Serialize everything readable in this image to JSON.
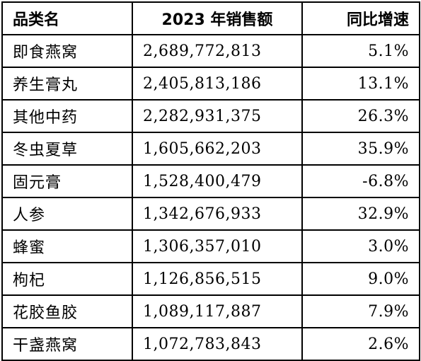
{
  "table": {
    "headers": {
      "category": "品类名",
      "sales": "2023 年销售额",
      "growth": "同比增速"
    },
    "rows": [
      {
        "category": "即食燕窝",
        "sales": "2,689,772,813",
        "growth": "5.1%"
      },
      {
        "category": "养生膏丸",
        "sales": "2,405,813,186",
        "growth": "13.1%"
      },
      {
        "category": "其他中药",
        "sales": "2,282,931,375",
        "growth": "26.3%"
      },
      {
        "category": "冬虫夏草",
        "sales": "1,605,662,203",
        "growth": "35.9%"
      },
      {
        "category": "固元膏",
        "sales": "1,528,400,479",
        "growth": "-6.8%"
      },
      {
        "category": "人参",
        "sales": "1,342,676,933",
        "growth": "32.9%"
      },
      {
        "category": "蜂蜜",
        "sales": "1,306,357,010",
        "growth": "3.0%"
      },
      {
        "category": "枸杞",
        "sales": "1,126,856,515",
        "growth": "9.0%"
      },
      {
        "category": "花胶鱼胶",
        "sales": "1,089,117,887",
        "growth": "7.9%"
      },
      {
        "category": "干盏燕窝",
        "sales": "1,072,783,843",
        "growth": "2.6%"
      }
    ]
  }
}
